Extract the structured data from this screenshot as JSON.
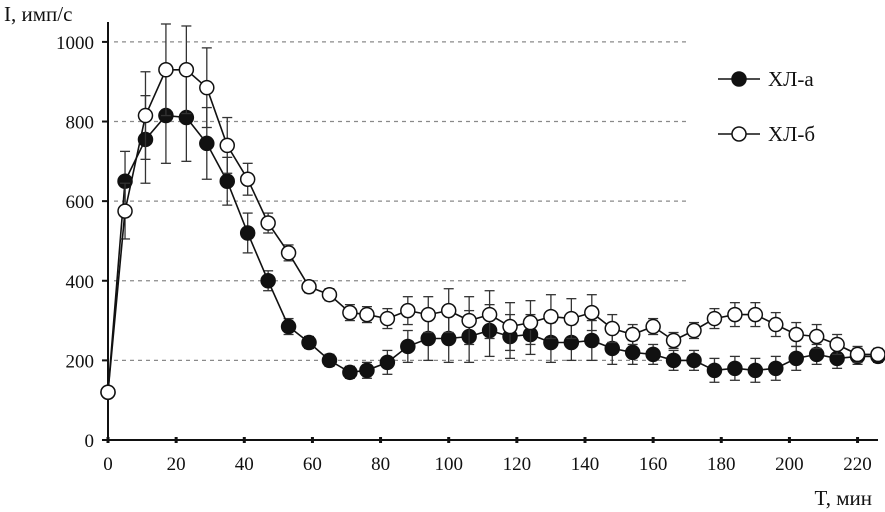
{
  "chart_data": {
    "type": "line",
    "title": "",
    "ylabel": "I, имп/с",
    "xlabel": "T, мин",
    "xlim": [
      0,
      226
    ],
    "ylim": [
      0,
      1050
    ],
    "xticks": [
      0,
      20,
      40,
      60,
      80,
      100,
      120,
      140,
      160,
      180,
      200,
      220
    ],
    "yticks": [
      0,
      200,
      400,
      600,
      800,
      1000
    ],
    "grid": "horizontal-dashed",
    "legend_position": "top-right",
    "colors": {
      "line": "#111111",
      "marker_open": "#ffffff",
      "grid": "#8a8a8a"
    },
    "series": [
      {
        "name": "ХЛ-а",
        "marker": "filled-circle",
        "x": [
          0,
          5,
          11,
          17,
          23,
          29,
          35,
          41,
          47,
          53,
          59,
          65,
          71,
          76,
          82,
          88,
          94,
          100,
          106,
          112,
          118,
          124,
          130,
          136,
          142,
          148,
          154,
          160,
          166,
          172,
          178,
          184,
          190,
          196,
          202,
          208,
          214,
          220,
          226
        ],
        "y": [
          120,
          650,
          755,
          815,
          810,
          745,
          650,
          520,
          400,
          285,
          245,
          200,
          170,
          175,
          195,
          235,
          255,
          255,
          260,
          275,
          260,
          265,
          245,
          245,
          250,
          230,
          220,
          215,
          200,
          200,
          175,
          180,
          175,
          180,
          205,
          215,
          205,
          210,
          210
        ],
        "err": [
          0,
          75,
          110,
          120,
          110,
          90,
          60,
          50,
          25,
          20,
          15,
          15,
          15,
          20,
          30,
          40,
          55,
          60,
          65,
          65,
          55,
          50,
          50,
          45,
          50,
          40,
          30,
          25,
          25,
          25,
          30,
          30,
          30,
          30,
          30,
          25,
          25,
          20,
          15
        ]
      },
      {
        "name": "ХЛ-б",
        "marker": "open-circle",
        "x": [
          0,
          5,
          11,
          17,
          23,
          29,
          35,
          41,
          47,
          53,
          59,
          65,
          71,
          76,
          82,
          88,
          94,
          100,
          106,
          112,
          118,
          124,
          130,
          136,
          142,
          148,
          154,
          160,
          166,
          172,
          178,
          184,
          190,
          196,
          202,
          208,
          214,
          220,
          226
        ],
        "y": [
          120,
          575,
          815,
          930,
          930,
          885,
          740,
          655,
          545,
          470,
          385,
          365,
          320,
          315,
          305,
          325,
          315,
          325,
          300,
          315,
          285,
          295,
          310,
          305,
          320,
          280,
          265,
          285,
          250,
          275,
          305,
          315,
          315,
          290,
          265,
          260,
          240,
          215,
          215
        ],
        "err": [
          0,
          70,
          110,
          115,
          110,
          100,
          70,
          40,
          25,
          20,
          15,
          15,
          20,
          20,
          25,
          35,
          45,
          55,
          60,
          60,
          60,
          55,
          55,
          50,
          45,
          35,
          25,
          20,
          20,
          20,
          25,
          30,
          30,
          30,
          30,
          30,
          25,
          20,
          15
        ]
      }
    ]
  }
}
